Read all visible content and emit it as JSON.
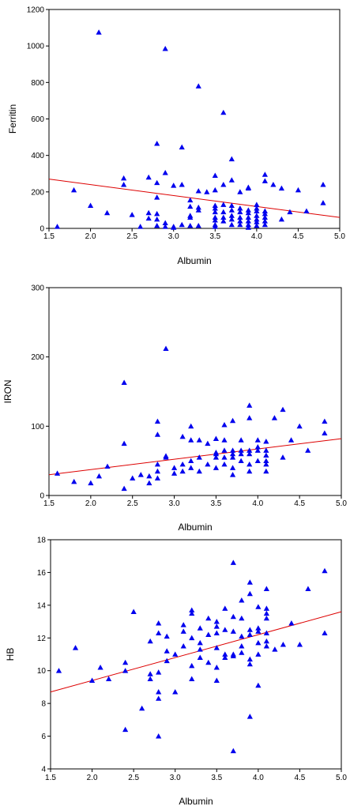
{
  "marker_color": "#0000ee",
  "line_color": "#dd0000",
  "chart_data": [
    {
      "type": "scatter",
      "xlabel": "Albumin",
      "ylabel": "Ferritin",
      "xlim": [
        1.5,
        5.0
      ],
      "ylim": [
        0,
        1200
      ],
      "xticks": [
        "1.5",
        "2.0",
        "2.5",
        "3.0",
        "3.5",
        "4.0",
        "4.5",
        "5.0"
      ],
      "yticks": [
        "0",
        "200",
        "400",
        "600",
        "800",
        "1000",
        "1200"
      ],
      "grid": false,
      "fit_line": {
        "x": [
          1.5,
          5.0
        ],
        "y": [
          270,
          60
        ]
      },
      "points": [
        [
          1.6,
          10
        ],
        [
          1.8,
          210
        ],
        [
          2.0,
          125
        ],
        [
          2.1,
          1075
        ],
        [
          2.2,
          85
        ],
        [
          2.4,
          275
        ],
        [
          2.4,
          240
        ],
        [
          2.5,
          75
        ],
        [
          2.6,
          10
        ],
        [
          2.7,
          280
        ],
        [
          2.7,
          85
        ],
        [
          2.7,
          55
        ],
        [
          2.8,
          465
        ],
        [
          2.8,
          250
        ],
        [
          2.8,
          170
        ],
        [
          2.8,
          80
        ],
        [
          2.8,
          50
        ],
        [
          2.8,
          15
        ],
        [
          2.9,
          985
        ],
        [
          2.9,
          305
        ],
        [
          2.9,
          30
        ],
        [
          2.9,
          10
        ],
        [
          3.0,
          235
        ],
        [
          3.0,
          10
        ],
        [
          3.0,
          5
        ],
        [
          3.1,
          445
        ],
        [
          3.1,
          240
        ],
        [
          3.1,
          20
        ],
        [
          3.2,
          155
        ],
        [
          3.2,
          120
        ],
        [
          3.2,
          70
        ],
        [
          3.2,
          60
        ],
        [
          3.2,
          15
        ],
        [
          3.3,
          780
        ],
        [
          3.3,
          205
        ],
        [
          3.3,
          115
        ],
        [
          3.3,
          100
        ],
        [
          3.3,
          15
        ],
        [
          3.4,
          200
        ],
        [
          3.5,
          290
        ],
        [
          3.5,
          210
        ],
        [
          3.5,
          125
        ],
        [
          3.5,
          110
        ],
        [
          3.5,
          90
        ],
        [
          3.5,
          60
        ],
        [
          3.5,
          45
        ],
        [
          3.5,
          20
        ],
        [
          3.5,
          10
        ],
        [
          3.6,
          635
        ],
        [
          3.6,
          240
        ],
        [
          3.6,
          130
        ],
        [
          3.6,
          90
        ],
        [
          3.6,
          60
        ],
        [
          3.6,
          40
        ],
        [
          3.7,
          380
        ],
        [
          3.7,
          265
        ],
        [
          3.7,
          125
        ],
        [
          3.7,
          100
        ],
        [
          3.7,
          70
        ],
        [
          3.7,
          50
        ],
        [
          3.7,
          20
        ],
        [
          3.8,
          200
        ],
        [
          3.8,
          110
        ],
        [
          3.8,
          90
        ],
        [
          3.8,
          60
        ],
        [
          3.8,
          40
        ],
        [
          3.8,
          20
        ],
        [
          3.9,
          225
        ],
        [
          3.9,
          220
        ],
        [
          3.9,
          100
        ],
        [
          3.9,
          85
        ],
        [
          3.9,
          60
        ],
        [
          3.9,
          40
        ],
        [
          3.9,
          20
        ],
        [
          3.9,
          5
        ],
        [
          4.0,
          130
        ],
        [
          4.0,
          110
        ],
        [
          4.0,
          95
        ],
        [
          4.0,
          70
        ],
        [
          4.0,
          50
        ],
        [
          4.0,
          35
        ],
        [
          4.0,
          15
        ],
        [
          4.1,
          295
        ],
        [
          4.1,
          260
        ],
        [
          4.1,
          95
        ],
        [
          4.1,
          80
        ],
        [
          4.1,
          60
        ],
        [
          4.1,
          40
        ],
        [
          4.1,
          20
        ],
        [
          4.2,
          240
        ],
        [
          4.3,
          220
        ],
        [
          4.3,
          50
        ],
        [
          4.4,
          90
        ],
        [
          4.5,
          210
        ],
        [
          4.6,
          95
        ],
        [
          4.8,
          240
        ],
        [
          4.8,
          140
        ]
      ]
    },
    {
      "type": "scatter",
      "xlabel": "Albumin",
      "ylabel": "IRON",
      "xlim": [
        1.5,
        5.0
      ],
      "ylim": [
        0,
        300
      ],
      "xticks": [
        "1.5",
        "2.0",
        "2.5",
        "3.0",
        "3.5",
        "4.0",
        "4.5",
        "5.0"
      ],
      "yticks": [
        "0",
        "100",
        "200",
        "300"
      ],
      "grid": false,
      "fit_line": {
        "x": [
          1.5,
          5.0
        ],
        "y": [
          30,
          82
        ]
      },
      "points": [
        [
          1.6,
          32
        ],
        [
          1.8,
          20
        ],
        [
          2.0,
          18
        ],
        [
          2.1,
          28
        ],
        [
          2.2,
          42
        ],
        [
          2.4,
          163
        ],
        [
          2.4,
          75
        ],
        [
          2.4,
          10
        ],
        [
          2.5,
          25
        ],
        [
          2.6,
          30
        ],
        [
          2.7,
          28
        ],
        [
          2.7,
          18
        ],
        [
          2.8,
          107
        ],
        [
          2.8,
          88
        ],
        [
          2.8,
          45
        ],
        [
          2.8,
          35
        ],
        [
          2.8,
          25
        ],
        [
          2.9,
          212
        ],
        [
          2.9,
          57
        ],
        [
          2.9,
          55
        ],
        [
          3.0,
          40
        ],
        [
          3.0,
          32
        ],
        [
          3.1,
          85
        ],
        [
          3.1,
          45
        ],
        [
          3.1,
          35
        ],
        [
          3.2,
          100
        ],
        [
          3.2,
          80
        ],
        [
          3.2,
          50
        ],
        [
          3.2,
          40
        ],
        [
          3.3,
          80
        ],
        [
          3.3,
          55
        ],
        [
          3.3,
          35
        ],
        [
          3.4,
          75
        ],
        [
          3.4,
          45
        ],
        [
          3.5,
          82
        ],
        [
          3.5,
          62
        ],
        [
          3.5,
          60
        ],
        [
          3.5,
          55
        ],
        [
          3.5,
          40
        ],
        [
          3.6,
          102
        ],
        [
          3.6,
          80
        ],
        [
          3.6,
          65
        ],
        [
          3.6,
          55
        ],
        [
          3.6,
          45
        ],
        [
          3.7,
          108
        ],
        [
          3.7,
          65
        ],
        [
          3.7,
          60
        ],
        [
          3.7,
          55
        ],
        [
          3.7,
          40
        ],
        [
          3.7,
          30
        ],
        [
          3.8,
          80
        ],
        [
          3.8,
          65
        ],
        [
          3.8,
          60
        ],
        [
          3.8,
          50
        ],
        [
          3.9,
          130
        ],
        [
          3.9,
          112
        ],
        [
          3.9,
          65
        ],
        [
          3.9,
          60
        ],
        [
          3.9,
          45
        ],
        [
          3.9,
          35
        ],
        [
          4.0,
          80
        ],
        [
          4.0,
          70
        ],
        [
          4.0,
          65
        ],
        [
          4.0,
          50
        ],
        [
          4.1,
          78
        ],
        [
          4.1,
          65
        ],
        [
          4.1,
          58
        ],
        [
          4.1,
          50
        ],
        [
          4.1,
          45
        ],
        [
          4.1,
          35
        ],
        [
          4.2,
          112
        ],
        [
          4.3,
          124
        ],
        [
          4.3,
          55
        ],
        [
          4.4,
          80
        ],
        [
          4.5,
          100
        ],
        [
          4.6,
          65
        ],
        [
          4.8,
          107
        ],
        [
          4.8,
          90
        ]
      ]
    },
    {
      "type": "scatter",
      "xlabel": "Albumin",
      "ylabel": "HB",
      "xlim": [
        1.5,
        5.0
      ],
      "ylim": [
        4,
        18
      ],
      "xticks": [
        "1.5",
        "2.0",
        "2.5",
        "3.0",
        "3.5",
        "4.0",
        "4.5",
        "5.0"
      ],
      "yticks": [
        "4",
        "6",
        "8",
        "10",
        "12",
        "14",
        "16",
        "18"
      ],
      "grid": false,
      "fit_line": {
        "x": [
          1.5,
          5.0
        ],
        "y": [
          8.7,
          13.6
        ]
      },
      "points": [
        [
          1.6,
          10.0
        ],
        [
          1.8,
          11.4
        ],
        [
          2.0,
          9.4
        ],
        [
          2.1,
          10.2
        ],
        [
          2.2,
          9.5
        ],
        [
          2.4,
          10.5
        ],
        [
          2.4,
          10.0
        ],
        [
          2.4,
          6.4
        ],
        [
          2.5,
          13.6
        ],
        [
          2.6,
          7.7
        ],
        [
          2.7,
          9.8
        ],
        [
          2.7,
          9.5
        ],
        [
          2.7,
          11.8
        ],
        [
          2.8,
          12.9
        ],
        [
          2.8,
          12.3
        ],
        [
          2.8,
          9.9
        ],
        [
          2.8,
          8.7
        ],
        [
          2.8,
          8.3
        ],
        [
          2.8,
          6.0
        ],
        [
          2.9,
          12.1
        ],
        [
          2.9,
          11.2
        ],
        [
          2.9,
          10.6
        ],
        [
          3.0,
          11.0
        ],
        [
          3.0,
          8.7
        ],
        [
          3.1,
          12.8
        ],
        [
          3.1,
          12.4
        ],
        [
          3.1,
          11.5
        ],
        [
          3.2,
          13.7
        ],
        [
          3.2,
          13.5
        ],
        [
          3.2,
          12.0
        ],
        [
          3.2,
          10.3
        ],
        [
          3.2,
          9.5
        ],
        [
          3.3,
          12.6
        ],
        [
          3.3,
          11.7
        ],
        [
          3.3,
          11.3
        ],
        [
          3.3,
          10.8
        ],
        [
          3.4,
          13.2
        ],
        [
          3.4,
          12.2
        ],
        [
          3.4,
          10.5
        ],
        [
          3.5,
          13.0
        ],
        [
          3.5,
          12.7
        ],
        [
          3.5,
          12.3
        ],
        [
          3.5,
          11.4
        ],
        [
          3.5,
          10.2
        ],
        [
          3.5,
          9.4
        ],
        [
          3.6,
          13.8
        ],
        [
          3.6,
          12.5
        ],
        [
          3.6,
          11.0
        ],
        [
          3.6,
          10.8
        ],
        [
          3.7,
          16.6
        ],
        [
          3.7,
          13.3
        ],
        [
          3.7,
          12.4
        ],
        [
          3.7,
          11.0
        ],
        [
          3.7,
          10.9
        ],
        [
          3.7,
          5.1
        ],
        [
          3.8,
          14.3
        ],
        [
          3.8,
          13.2
        ],
        [
          3.8,
          12.1
        ],
        [
          3.8,
          11.5
        ],
        [
          3.8,
          11.1
        ],
        [
          3.9,
          15.4
        ],
        [
          3.9,
          14.7
        ],
        [
          3.9,
          12.5
        ],
        [
          3.9,
          12.2
        ],
        [
          3.9,
          10.7
        ],
        [
          3.9,
          10.4
        ],
        [
          3.9,
          7.2
        ],
        [
          4.0,
          13.9
        ],
        [
          4.0,
          12.6
        ],
        [
          4.0,
          12.4
        ],
        [
          4.0,
          11.7
        ],
        [
          4.0,
          11.0
        ],
        [
          4.0,
          9.1
        ],
        [
          4.1,
          15.0
        ],
        [
          4.1,
          13.8
        ],
        [
          4.1,
          13.5
        ],
        [
          4.1,
          13.2
        ],
        [
          4.1,
          12.3
        ],
        [
          4.1,
          11.8
        ],
        [
          4.1,
          11.5
        ],
        [
          4.2,
          11.3
        ],
        [
          4.3,
          11.6
        ],
        [
          4.4,
          12.9
        ],
        [
          4.5,
          11.6
        ],
        [
          4.6,
          15.0
        ],
        [
          4.8,
          16.1
        ],
        [
          4.8,
          12.3
        ]
      ]
    }
  ]
}
